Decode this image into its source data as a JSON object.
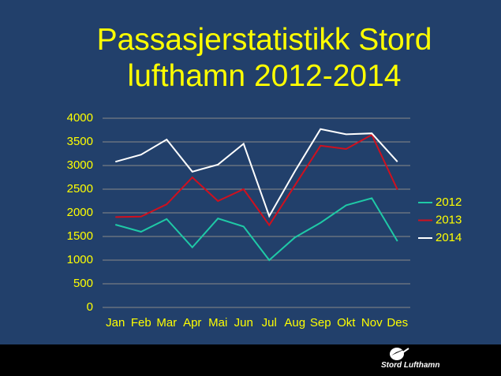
{
  "chart_data": {
    "type": "line",
    "title": "Passasjerstatistikk Stord lufthamn 2012-2014",
    "categories": [
      "Jan",
      "Feb",
      "Mar",
      "Apr",
      "Mai",
      "Jun",
      "Jul",
      "Aug",
      "Sep",
      "Okt",
      "Nov",
      "Des"
    ],
    "series": [
      {
        "name": "2012",
        "color": "#1fc9a6",
        "values": [
          1750,
          1600,
          1870,
          1270,
          1880,
          1710,
          1000,
          1480,
          1790,
          2160,
          2310,
          1400
        ]
      },
      {
        "name": "2013",
        "color": "#d0101e",
        "values": [
          1910,
          1920,
          2180,
          2750,
          2250,
          2500,
          1740,
          2580,
          3420,
          3350,
          3650,
          2490
        ]
      },
      {
        "name": "2014",
        "color": "#ffffff",
        "values": [
          3080,
          3230,
          3550,
          2870,
          3020,
          3460,
          1930,
          2880,
          3770,
          3660,
          3680,
          3080
        ]
      }
    ],
    "ylim": [
      0,
      4000
    ],
    "yticks": [
      0,
      500,
      1000,
      1500,
      2000,
      2500,
      3000,
      3500,
      4000
    ],
    "grid": true,
    "legend": "right"
  },
  "footer": {
    "logo_text": "Stord Lufthamn"
  }
}
